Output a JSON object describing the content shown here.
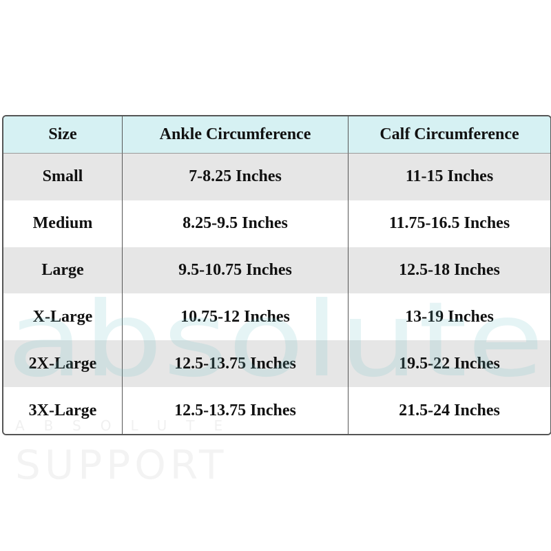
{
  "table": {
    "header": [
      "Size",
      "Ankle Circumference",
      "Calf Circumference"
    ],
    "rows": [
      [
        "Small",
        "7-8.25 Inches",
        "11-15 Inches"
      ],
      [
        "Medium",
        "8.25-9.5 Inches",
        "11.75-16.5 Inches"
      ],
      [
        "Large",
        "9.5-10.75 Inches",
        "12.5-18 Inches"
      ],
      [
        "X-Large",
        "10.75-12 Inches",
        "13-19 Inches"
      ],
      [
        "2X-Large",
        "12.5-13.75 Inches",
        "19.5-22 Inches"
      ],
      [
        "3X-Large",
        "12.5-13.75 Inches",
        "21.5-24 Inches"
      ]
    ]
  },
  "watermark": {
    "logo": "absolute",
    "subtitle": "ABSOLUTE",
    "tagline": "SUPPORT"
  }
}
